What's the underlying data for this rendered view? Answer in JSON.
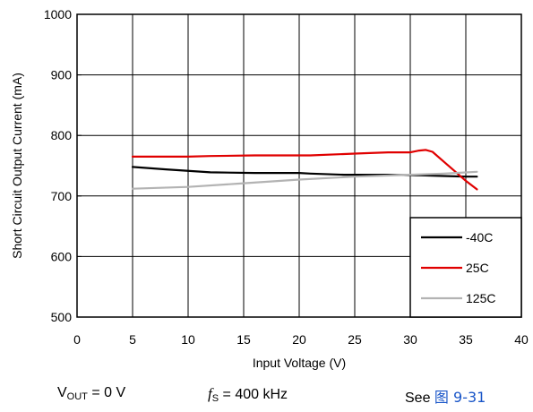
{
  "chart_data": {
    "type": "line",
    "title": "",
    "xlabel": "Input Voltage (V)",
    "ylabel": "Short Circuit Output Current (mA)",
    "xlim": [
      0,
      40
    ],
    "ylim": [
      500,
      1000
    ],
    "xticks": [
      "0",
      "5",
      "10",
      "15",
      "20",
      "25",
      "30",
      "35",
      "40"
    ],
    "yticks": [
      "500",
      "600",
      "700",
      "800",
      "900",
      "1000"
    ],
    "grid": true,
    "legend_position": "bottom-right",
    "series": [
      {
        "name": "-40C",
        "color": "#000000",
        "x": [
          5,
          8,
          12,
          16,
          20,
          21,
          24,
          28,
          31,
          33,
          35,
          36
        ],
        "y": [
          748,
          744,
          739,
          738,
          738,
          737,
          735,
          735,
          734,
          733,
          732,
          732
        ]
      },
      {
        "name": "25C",
        "color": "#e00000",
        "x": [
          5,
          10,
          12,
          16,
          21,
          25,
          28,
          30,
          30.8,
          31.4,
          32,
          33,
          34,
          35,
          36
        ],
        "y": [
          765,
          765,
          766,
          767,
          767,
          770,
          772,
          772,
          775,
          776,
          773,
          757,
          741,
          725,
          711
        ]
      },
      {
        "name": "125C",
        "color": "#b3b3b3",
        "x": [
          5,
          10,
          15,
          20,
          25,
          30,
          33,
          36
        ],
        "y": [
          712,
          715,
          721,
          727,
          732,
          735,
          737,
          740
        ]
      }
    ]
  },
  "conditions": {
    "vout_main": "V",
    "vout_sub": "OUT",
    "vout_rest": " = 0 V",
    "fs_symbol": "f",
    "fs_sub": "S",
    "fs_rest": " = 400 kHz",
    "see_label": "See ",
    "see_ref": "图 9-31"
  }
}
